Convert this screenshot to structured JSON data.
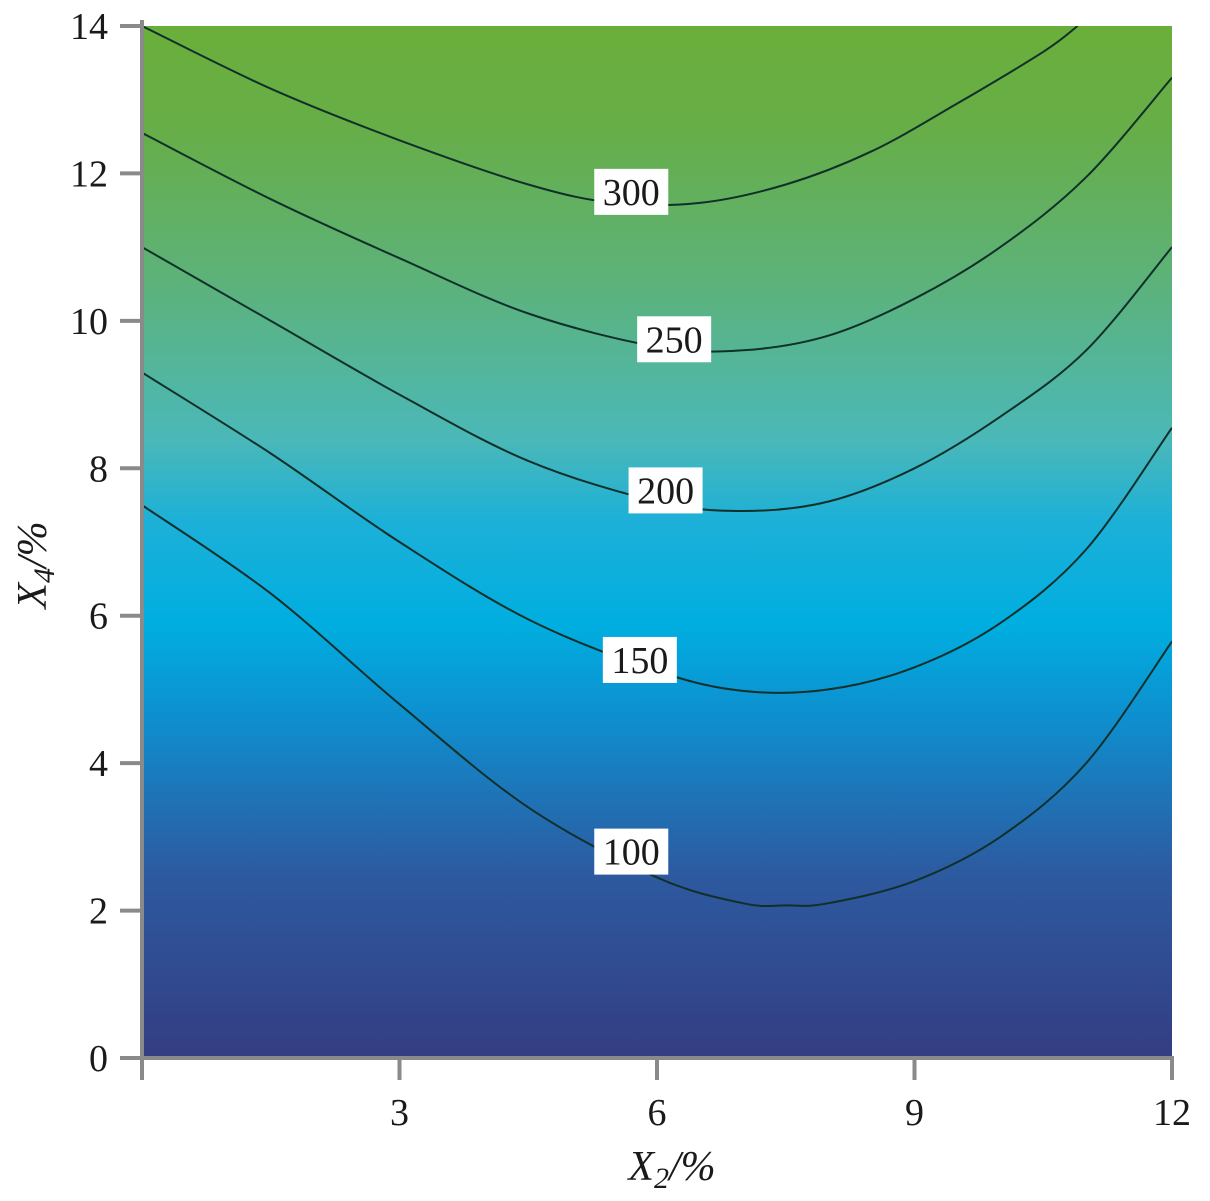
{
  "chart_data": {
    "type": "contour",
    "xlabel": {
      "var": "X",
      "sub": "2",
      "unit": "/%"
    },
    "ylabel": {
      "var": "X",
      "sub": "4",
      "unit": "/%"
    },
    "xlim": [
      0,
      12
    ],
    "ylim": [
      0,
      14
    ],
    "x_ticks": [
      3,
      6,
      9,
      12
    ],
    "y_ticks": [
      0,
      2,
      4,
      6,
      8,
      10,
      12,
      14
    ],
    "grid": false,
    "colors": {
      "low": "#343d82",
      "mid_low": "#1f8ec7",
      "mid": "#00aee0",
      "mid_high": "#4bb8b8",
      "high": "#6aae3a"
    },
    "contours": [
      {
        "level": 100,
        "label": "100",
        "label_pos": [
          5.7,
          2.8
        ],
        "points": [
          [
            0.0,
            7.5
          ],
          [
            1.5,
            6.3
          ],
          [
            3.0,
            4.8
          ],
          [
            4.5,
            3.4
          ],
          [
            6.0,
            2.45
          ],
          [
            7.0,
            2.1
          ],
          [
            7.5,
            2.07
          ],
          [
            8.0,
            2.1
          ],
          [
            9.0,
            2.4
          ],
          [
            10.0,
            3.0
          ],
          [
            11.0,
            4.0
          ],
          [
            12.0,
            5.65
          ]
        ]
      },
      {
        "level": 150,
        "label": "150",
        "label_pos": [
          5.8,
          5.4
        ],
        "points": [
          [
            0.0,
            9.3
          ],
          [
            1.5,
            8.2
          ],
          [
            3.0,
            7.0
          ],
          [
            4.5,
            5.95
          ],
          [
            6.0,
            5.25
          ],
          [
            7.0,
            4.98
          ],
          [
            8.0,
            5.0
          ],
          [
            9.0,
            5.3
          ],
          [
            10.0,
            5.9
          ],
          [
            11.0,
            6.9
          ],
          [
            12.0,
            8.55
          ]
        ]
      },
      {
        "level": 200,
        "label": "200",
        "label_pos": [
          6.1,
          7.7
        ],
        "points": [
          [
            0.0,
            11.0
          ],
          [
            1.5,
            10.0
          ],
          [
            3.0,
            9.0
          ],
          [
            4.5,
            8.1
          ],
          [
            6.0,
            7.55
          ],
          [
            7.0,
            7.42
          ],
          [
            8.0,
            7.55
          ],
          [
            9.0,
            8.0
          ],
          [
            10.0,
            8.7
          ],
          [
            11.0,
            9.6
          ],
          [
            12.0,
            11.0
          ]
        ]
      },
      {
        "level": 250,
        "label": "250",
        "label_pos": [
          6.2,
          9.75
        ],
        "points": [
          [
            0.0,
            12.55
          ],
          [
            1.5,
            11.65
          ],
          [
            3.0,
            10.85
          ],
          [
            4.5,
            10.1
          ],
          [
            6.0,
            9.65
          ],
          [
            7.0,
            9.6
          ],
          [
            8.0,
            9.8
          ],
          [
            9.0,
            10.3
          ],
          [
            10.0,
            11.0
          ],
          [
            11.0,
            11.95
          ],
          [
            12.0,
            13.3
          ]
        ]
      },
      {
        "level": 300,
        "label": "300",
        "label_pos": [
          5.7,
          11.75
        ],
        "points": [
          [
            0.0,
            14.0
          ],
          [
            1.5,
            13.15
          ],
          [
            3.0,
            12.45
          ],
          [
            4.5,
            11.85
          ],
          [
            5.5,
            11.6
          ],
          [
            6.5,
            11.6
          ],
          [
            7.5,
            11.85
          ],
          [
            8.5,
            12.3
          ],
          [
            9.5,
            12.95
          ],
          [
            10.5,
            13.65
          ],
          [
            10.9,
            14.0
          ]
        ]
      }
    ]
  }
}
